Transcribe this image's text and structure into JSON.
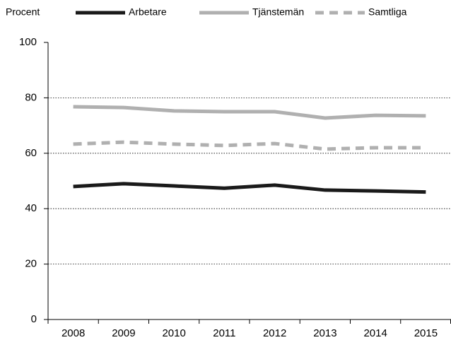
{
  "chart_data": {
    "type": "line",
    "ylabel": "Procent",
    "categories": [
      "2008",
      "2009",
      "2010",
      "2011",
      "2012",
      "2013",
      "2014",
      "2015"
    ],
    "series": [
      {
        "name": "Arbetare",
        "color": "#1a1a1a",
        "dash": false,
        "values": [
          48,
          49,
          48.2,
          47.4,
          48.5,
          46.7,
          46.4,
          46
        ]
      },
      {
        "name": "Tjänstemän",
        "color": "#b0b0b0",
        "dash": false,
        "values": [
          76.8,
          76.5,
          75.3,
          75,
          75,
          72.7,
          73.7,
          73.5
        ]
      },
      {
        "name": "Samtliga",
        "color": "#b0b0b0",
        "dash": true,
        "values": [
          63.3,
          64,
          63.3,
          62.8,
          63.5,
          61.5,
          62,
          62
        ]
      }
    ],
    "ylim": [
      0,
      100
    ],
    "yticks": [
      0,
      20,
      40,
      60,
      80,
      100
    ],
    "grid": true,
    "legend": "top"
  }
}
